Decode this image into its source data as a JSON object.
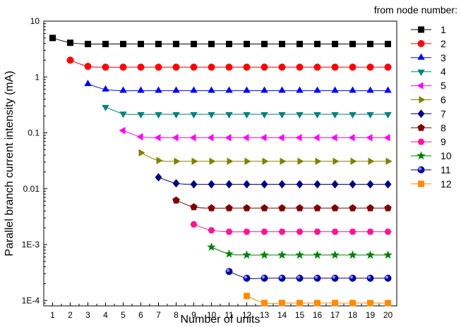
{
  "chart_data": {
    "type": "line",
    "title": "",
    "xlabel": "Number of units",
    "ylabel": "Parallel branch current intensity (mA)",
    "xlim": [
      0.5,
      20.5
    ],
    "ylim": [
      8e-05,
      10
    ],
    "y_scale": "log",
    "grid": false,
    "legend_position": "right",
    "legend_title": "from node number:",
    "x_ticks": [
      "1",
      "2",
      "3",
      "4",
      "5",
      "6",
      "7",
      "8",
      "9",
      "10",
      "11",
      "12",
      "13",
      "14",
      "15",
      "16",
      "17",
      "18",
      "19",
      "20"
    ],
    "y_ticks": [
      {
        "value": 0.0001,
        "label": "1E-4"
      },
      {
        "value": 0.001,
        "label": "1E-3"
      },
      {
        "value": 0.01,
        "label": "0.01"
      },
      {
        "value": 0.1,
        "label": "0.1"
      },
      {
        "value": 1,
        "label": "1"
      },
      {
        "value": 10,
        "label": "10"
      }
    ],
    "series": [
      {
        "name": "1",
        "color": "#000000",
        "marker": "square",
        "start": 1,
        "first": [
          5.0,
          4.1
        ],
        "plateau": 3.9
      },
      {
        "name": "2",
        "color": "#ff0000",
        "marker": "circle",
        "start": 2,
        "first": [
          2.0,
          1.55
        ],
        "plateau": 1.5
      },
      {
        "name": "3",
        "color": "#0000ff",
        "marker": "triangle-up",
        "start": 3,
        "first": [
          0.75,
          0.6
        ],
        "plateau": 0.57
      },
      {
        "name": "4",
        "color": "#008080",
        "marker": "triangle-down",
        "start": 4,
        "first": [
          0.29,
          0.22
        ],
        "plateau": 0.215
      },
      {
        "name": "5",
        "color": "#ff00ff",
        "marker": "triangle-left",
        "start": 5,
        "first": [
          0.11,
          0.085
        ],
        "plateau": 0.082
      },
      {
        "name": "6",
        "color": "#808000",
        "marker": "triangle-right",
        "start": 6,
        "first": [
          0.044,
          0.032
        ],
        "plateau": 0.031
      },
      {
        "name": "7",
        "color": "#000080",
        "marker": "diamond",
        "start": 7,
        "first": [
          0.016,
          0.0125
        ],
        "plateau": 0.012
      },
      {
        "name": "8",
        "color": "#800000",
        "marker": "pentagon",
        "start": 8,
        "first": [
          0.0062,
          0.0047
        ],
        "plateau": 0.0045
      },
      {
        "name": "9",
        "color": "#ff1493",
        "marker": "hexagon",
        "start": 9,
        "first": [
          0.0023,
          0.0018
        ],
        "plateau": 0.0017
      },
      {
        "name": "10",
        "color": "#008000",
        "marker": "star",
        "start": 10,
        "first": [
          0.0009,
          0.00068
        ],
        "plateau": 0.00065
      },
      {
        "name": "11",
        "color": "#000099",
        "marker": "sphere",
        "start": 11,
        "first": [
          0.00033,
          0.00025
        ],
        "plateau": 0.00025
      },
      {
        "name": "12",
        "color": "#ff8c00",
        "marker": "square",
        "start": 12,
        "first": [
          0.00012,
          9e-05
        ],
        "plateau": 9e-05
      }
    ]
  }
}
